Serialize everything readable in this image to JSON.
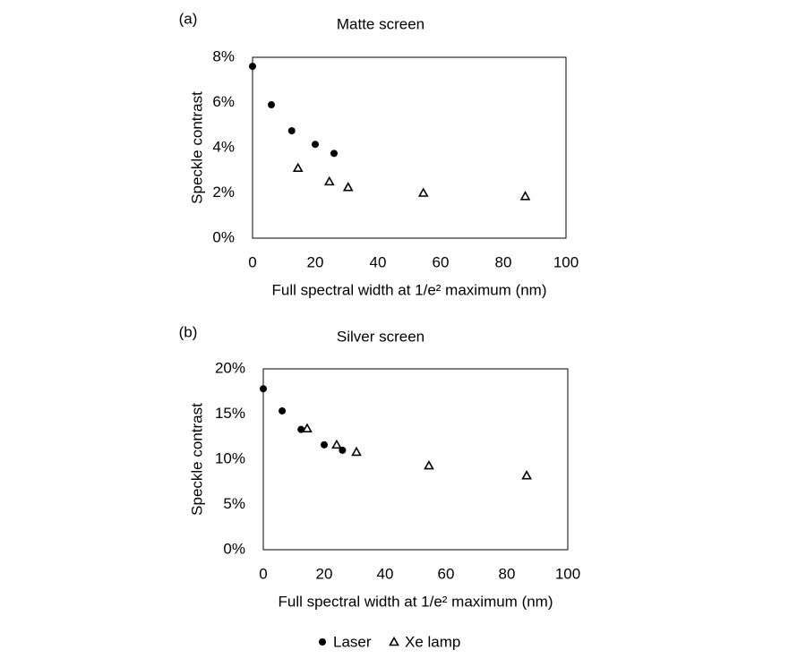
{
  "chart_data": [
    {
      "type": "scatter",
      "panel_label": "(a)",
      "title": "Matte screen",
      "xlabel": "Full spectral width at 1/e² maximum (nm)",
      "ylabel": "Speckle contrast",
      "xlim": [
        0,
        100
      ],
      "xticks": [
        0,
        20,
        40,
        60,
        80,
        100
      ],
      "ylim": [
        0,
        8
      ],
      "yticks": [
        {
          "value": 0,
          "label": "0%"
        },
        {
          "value": 2,
          "label": "2%"
        },
        {
          "value": 4,
          "label": "4%"
        },
        {
          "value": 6,
          "label": "6%"
        },
        {
          "value": 8,
          "label": "8%"
        }
      ],
      "grid": false,
      "series": [
        {
          "name": "Laser",
          "color": "#000000",
          "marker": "circle",
          "x": [
            0,
            6,
            12.5,
            20,
            26
          ],
          "values": [
            7.6,
            5.9,
            4.75,
            4.15,
            3.75
          ]
        },
        {
          "name": "Xe lamp",
          "color": "#000000",
          "marker": "triangle",
          "x": [
            14.5,
            24.5,
            30.5,
            54.5,
            87
          ],
          "values": [
            3.1,
            2.5,
            2.25,
            2.0,
            1.85
          ]
        }
      ]
    },
    {
      "type": "scatter",
      "panel_label": "(b)",
      "title": "Silver screen",
      "xlabel": "Full spectral width at 1/e² maximum (nm)",
      "ylabel": "Speckle contrast",
      "xlim": [
        0,
        100
      ],
      "xticks": [
        0,
        20,
        40,
        60,
        80,
        100
      ],
      "ylim": [
        0,
        20
      ],
      "yticks": [
        {
          "value": 0,
          "label": "0%"
        },
        {
          "value": 5,
          "label": "5%"
        },
        {
          "value": 10,
          "label": "10%"
        },
        {
          "value": 15,
          "label": "15%"
        },
        {
          "value": 20,
          "label": "20%"
        }
      ],
      "grid": false,
      "series": [
        {
          "color": "#000000",
          "marker": "circle",
          "x": [
            0,
            6.2,
            12.4,
            20,
            26
          ],
          "values": [
            17.8,
            15.35,
            13.3,
            11.6,
            11.0
          ]
        },
        {
          "color": "#000000",
          "marker": "triangle",
          "x": [
            14.4,
            24.1,
            30.6,
            54.4,
            86.5
          ],
          "values": [
            13.4,
            11.6,
            10.8,
            9.3,
            8.2
          ]
        }
      ]
    }
  ]
}
